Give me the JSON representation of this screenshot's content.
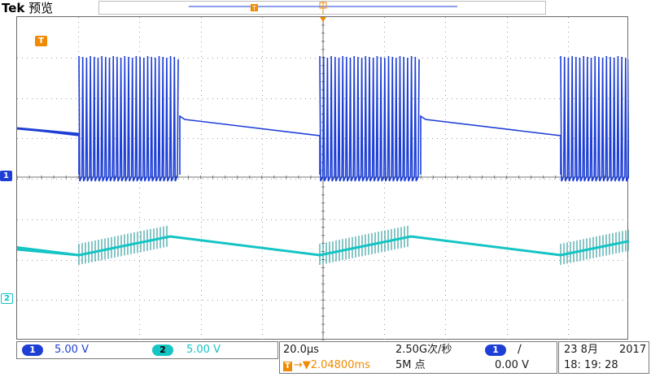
{
  "header": {
    "brand": "Tek",
    "mode": "预览"
  },
  "markers": {
    "trigger_marker": "T",
    "ch1_marker": "1",
    "ch2_marker": "2"
  },
  "channels": [
    {
      "id": "1",
      "scale": "5.00 V",
      "color": "#1d3fd6"
    },
    {
      "id": "2",
      "scale": "5.00 V",
      "color": "#15c4c4"
    }
  ],
  "acquisition": {
    "timebase": "20.0µs",
    "sample_rate": "2.50G次/秒",
    "record_length": "5M 点",
    "trigger_position_icon": "T",
    "trigger_position_arrow": "→▼",
    "trigger_position": "2.04800ms",
    "trigger_source": "1",
    "trigger_slope": "∕",
    "trigger_level": "0.00 V"
  },
  "datetime": {
    "date": "23 8月",
    "year": "2017",
    "time": "18: 19: 28"
  },
  "colors": {
    "ch1": "#1d3fd6",
    "ch2": "#15c4c4",
    "trigger": "#f08a00"
  }
}
